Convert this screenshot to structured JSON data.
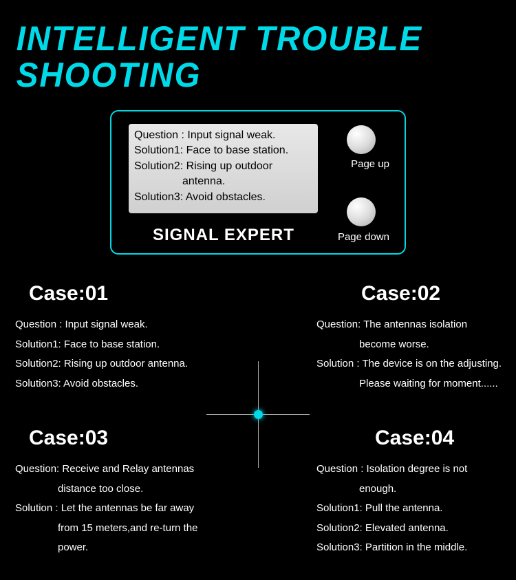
{
  "colors": {
    "accent": "#00d9e8",
    "background": "#000000",
    "text": "#ffffff",
    "screen_bg": "#e0e0e0",
    "screen_text": "#000000",
    "cross_line": "#aaaaaa"
  },
  "header": {
    "title_line1": "INTELLIGENT TROUBLE",
    "title_line2": "SHOOTING"
  },
  "device": {
    "label": "SIGNAL EXPERT",
    "screen": {
      "line1": "Question : Input signal weak.",
      "line2": "Solution1: Face to base station.",
      "line3": "Solution2: Rising up outdoor",
      "line3b": "antenna.",
      "line4": "Solution3: Avoid obstacles."
    },
    "page_up": "Page up",
    "page_down": "Page down"
  },
  "cases": {
    "c1": {
      "title": "Case:01",
      "l1": "Question : Input signal weak.",
      "l2": "Solution1: Face to base station.",
      "l3": "Solution2: Rising up outdoor antenna.",
      "l4": "Solution3: Avoid obstacles."
    },
    "c2": {
      "title": "Case:02",
      "l1": "Question: The antennas isolation",
      "l1b": "become worse.",
      "l2": "Solution : The device is on the adjusting.",
      "l2b": "Please waiting for moment......"
    },
    "c3": {
      "title": "Case:03",
      "l1": "Question: Receive and Relay antennas",
      "l1b": "distance too close.",
      "l2": "Solution : Let the antennas be far away",
      "l2b": "from 15 meters,and re-turn the",
      "l2c": "power."
    },
    "c4": {
      "title": "Case:04",
      "l1": "Question :  Isolation degree is not",
      "l1b": "enough.",
      "l2": "Solution1:  Pull the antenna.",
      "l3": "Solution2:  Elevated antenna.",
      "l4": "Solution3:  Partition in the middle."
    }
  }
}
